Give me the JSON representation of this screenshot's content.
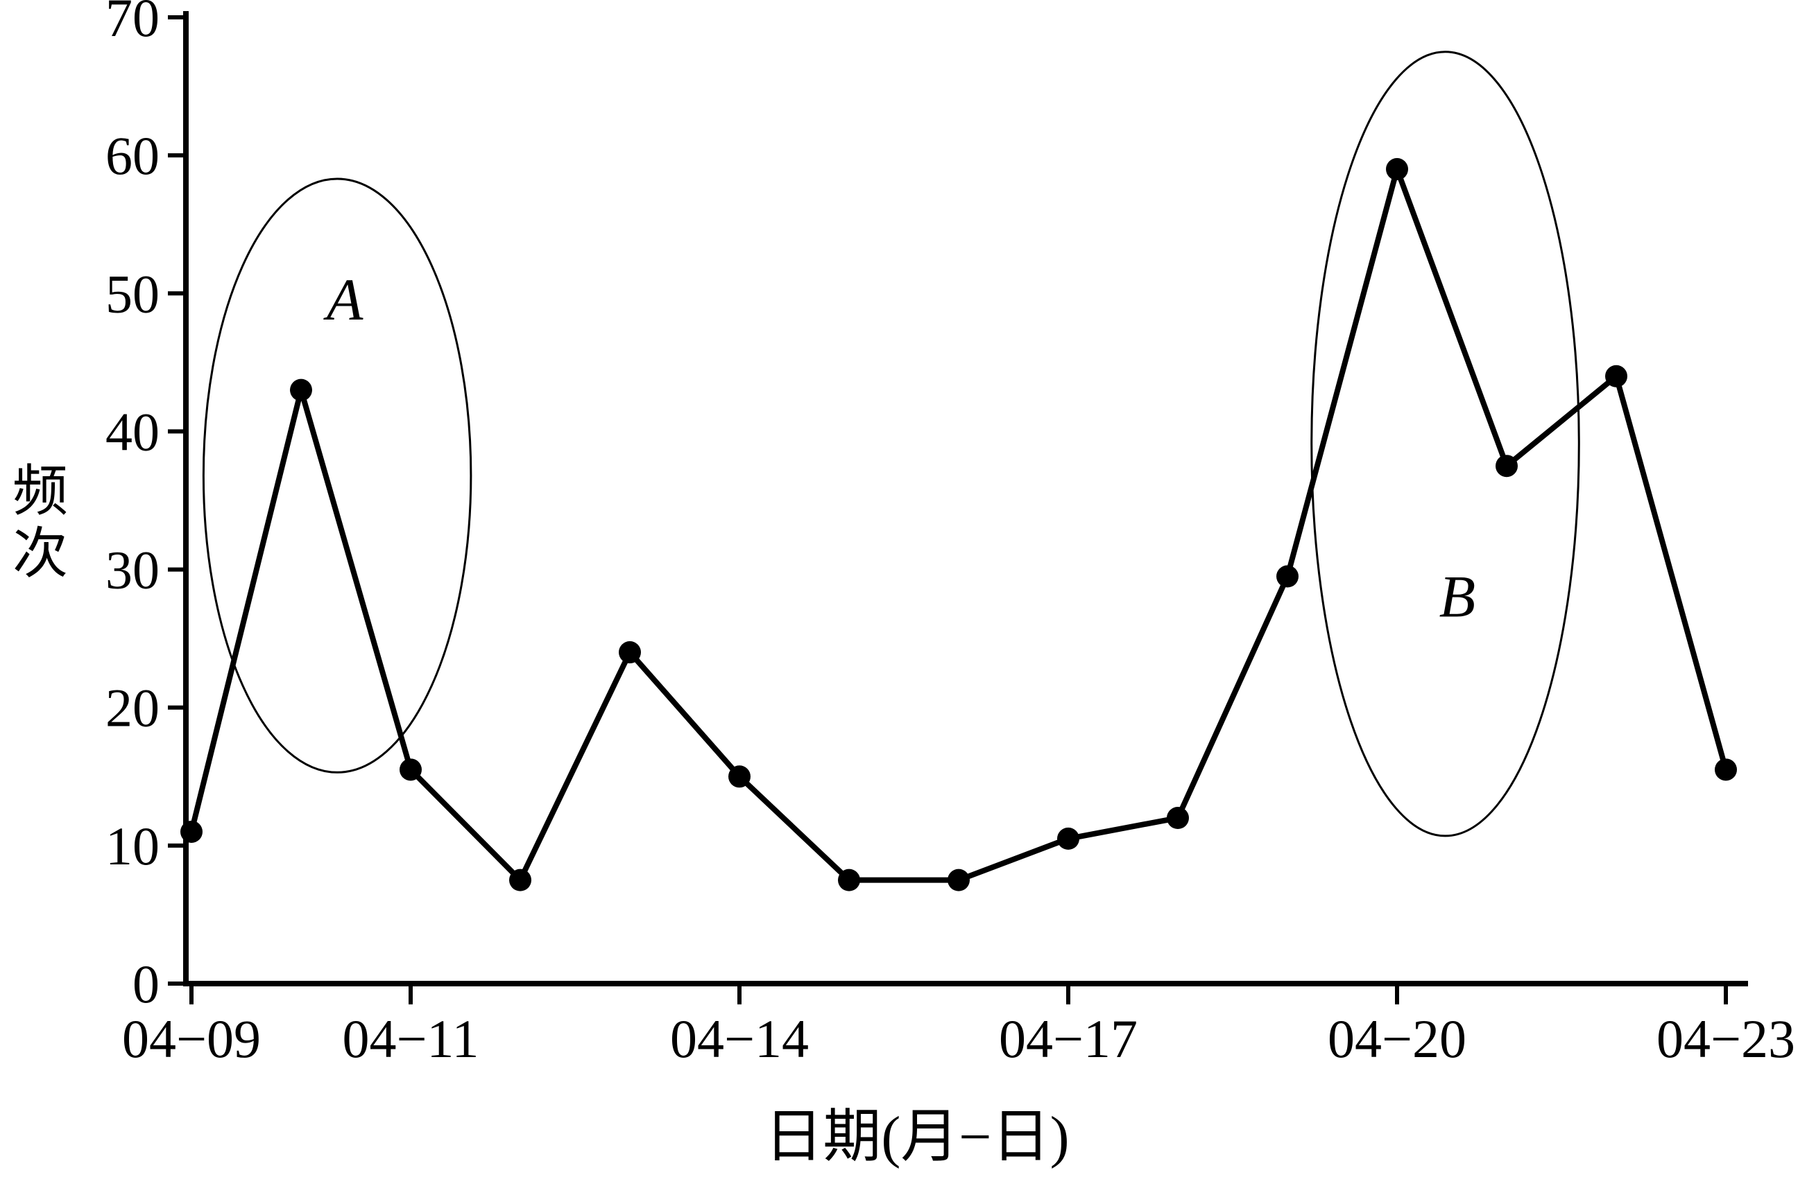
{
  "chart_data": {
    "type": "line",
    "title": "",
    "xlabel": "日期(月−日)",
    "ylabel": "频次",
    "x": [
      "04-09",
      "04-10",
      "04-11",
      "04-12",
      "04-13",
      "04-14",
      "04-15",
      "04-16",
      "04-17",
      "04-18",
      "04-19",
      "04-20",
      "04-21",
      "04-22",
      "04-23"
    ],
    "values": [
      11,
      43,
      15.5,
      7.5,
      24,
      15,
      7.5,
      7.5,
      10.5,
      12,
      29.5,
      59,
      37.5,
      44,
      15.5
    ],
    "ylim": [
      0,
      70
    ],
    "yticks": [
      0,
      10,
      20,
      30,
      40,
      50,
      60,
      70
    ],
    "xtick_labels": [
      "04−09",
      "04−11",
      "04−14",
      "04−17",
      "04−20",
      "04−23"
    ],
    "xtick_indices": [
      0,
      2,
      5,
      8,
      11,
      14
    ],
    "grid": false,
    "legend_position": "none",
    "line_color": "#000000",
    "marker": "circle",
    "annotations": [
      {
        "label": "A",
        "cx_day": 1.33,
        "cy_value": 36.8,
        "rx_days": 1.22,
        "ry_values": 21.5,
        "label_day": 1.4,
        "label_value": 49.5
      },
      {
        "label": "B",
        "cx_day": 11.44,
        "cy_value": 39.1,
        "rx_days": 1.22,
        "ry_values": 28.4,
        "label_day": 11.55,
        "label_value": 28.0
      }
    ]
  }
}
